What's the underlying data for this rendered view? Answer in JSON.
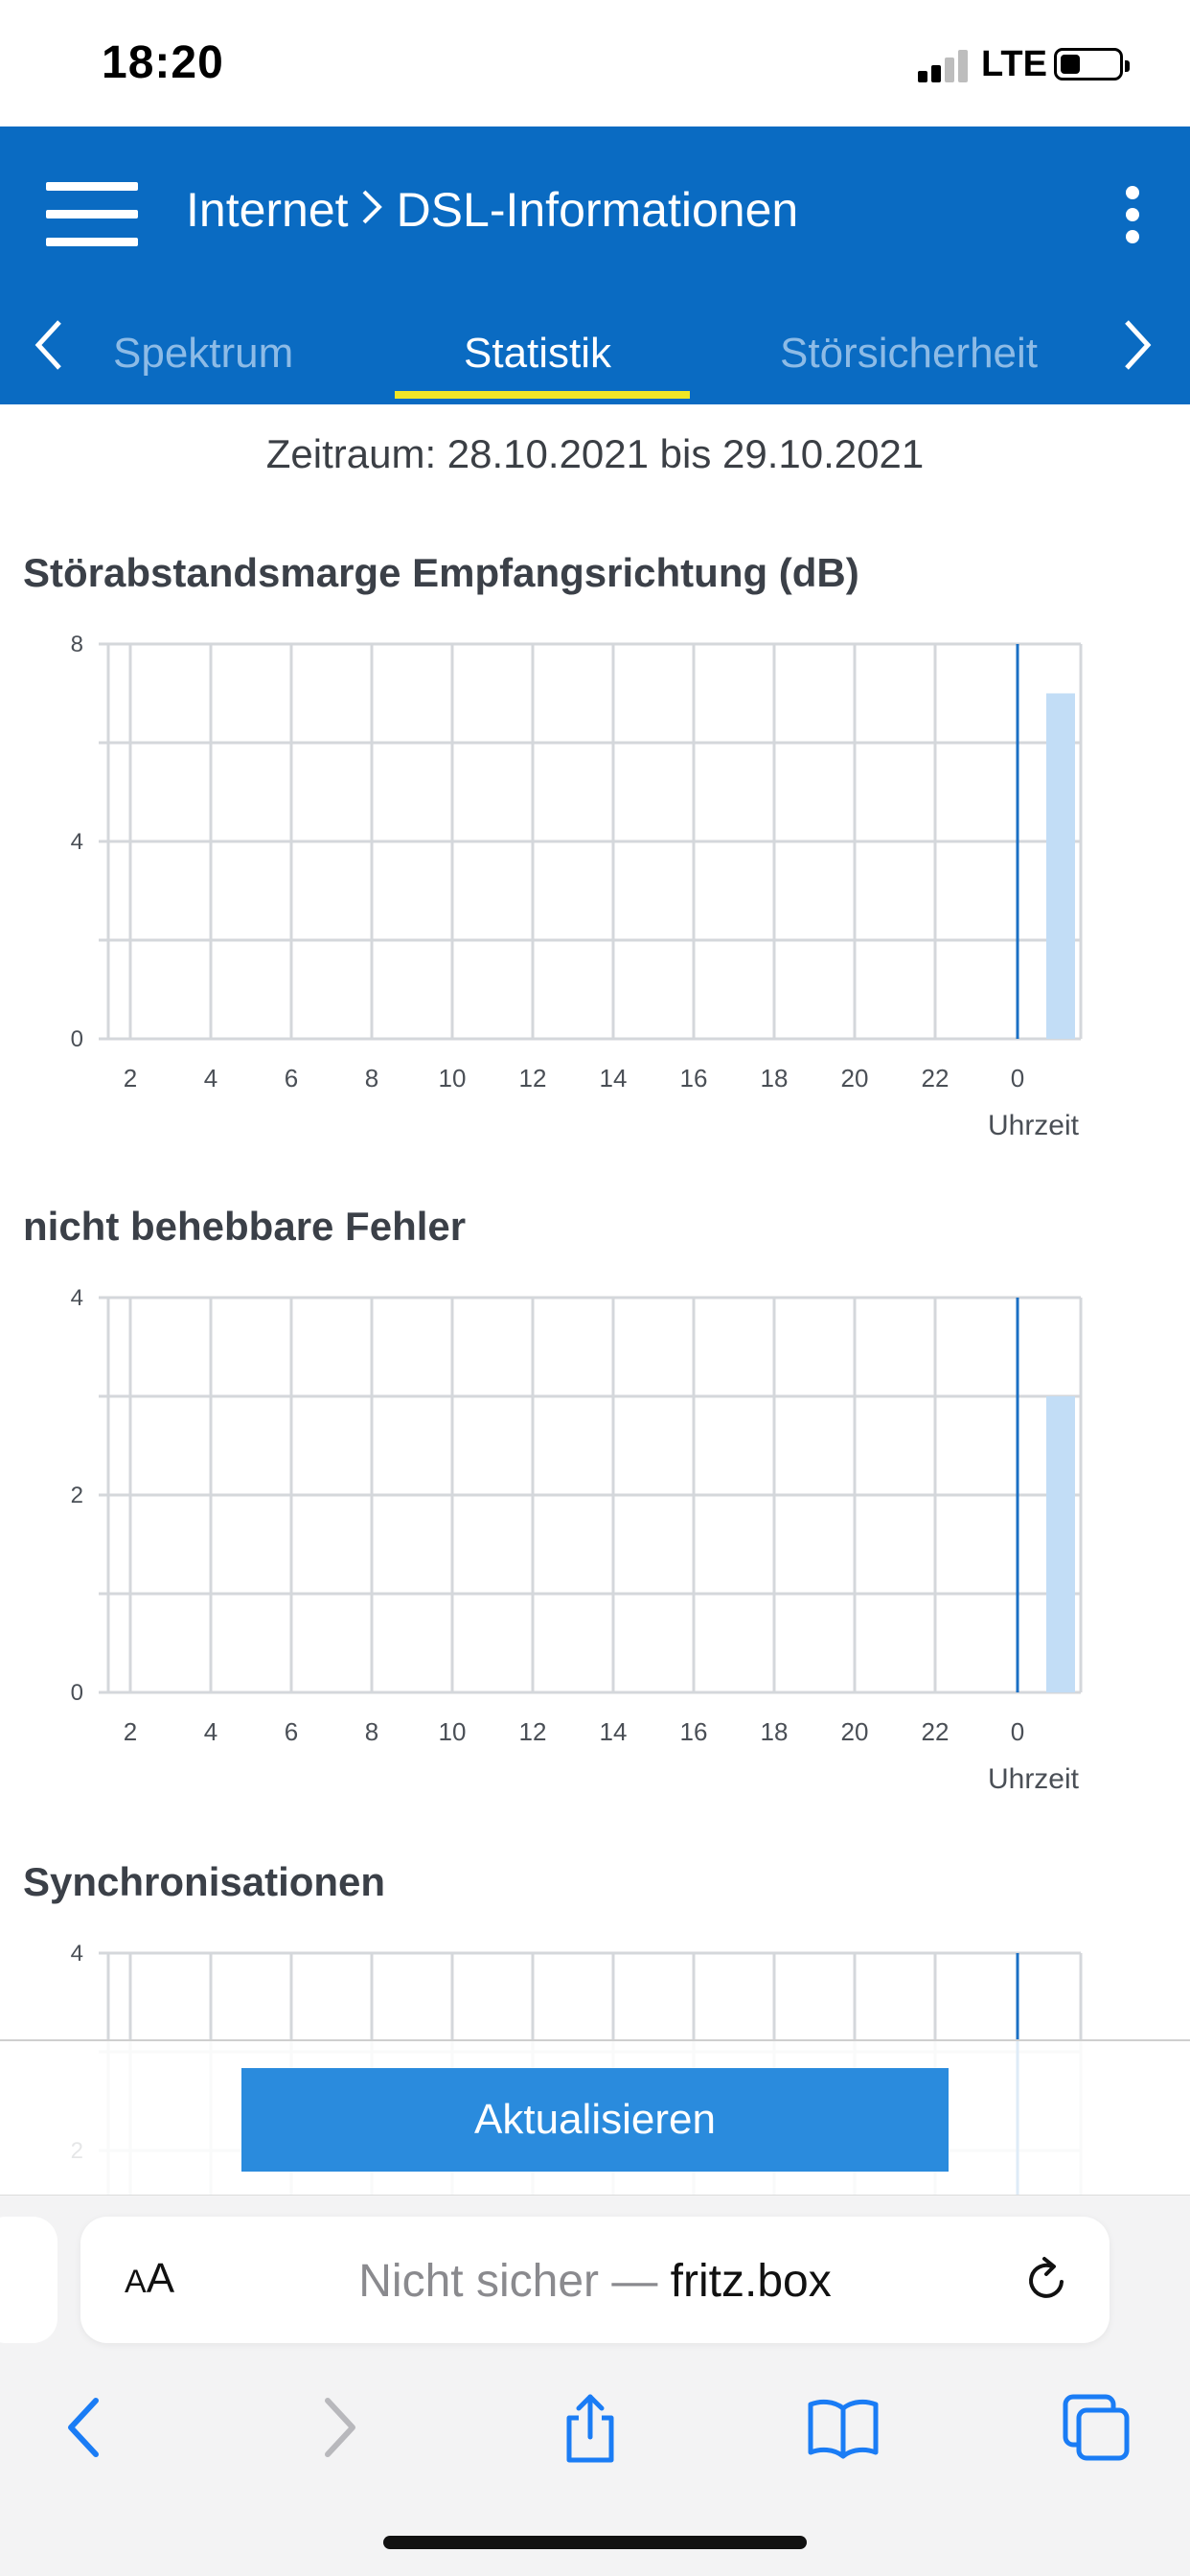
{
  "status_bar": {
    "time": "18:20",
    "network": "LTE"
  },
  "header": {
    "breadcrumb_section": "Internet",
    "breadcrumb_separator": ">",
    "breadcrumb_page": "DSL-Informationen",
    "tabs": [
      {
        "label": "Spektrum",
        "active": false
      },
      {
        "label": "Statistik",
        "active": true
      },
      {
        "label": "Störsicherheit",
        "active": false
      }
    ]
  },
  "period": "Zeitraum: 28.10.2021 bis 29.10.2021",
  "chart_data": [
    {
      "type": "bar",
      "title": "Störabstandsmarge Empfangsrichtung (dB)",
      "xlabel": "Uhrzeit",
      "x_ticks": [
        "2",
        "4",
        "6",
        "8",
        "10",
        "12",
        "14",
        "16",
        "18",
        "20",
        "22",
        "0"
      ],
      "y_ticks": [
        "0",
        "4",
        "8"
      ],
      "ylim": [
        0,
        8
      ],
      "bars": [
        {
          "x": "after 0",
          "value": 7
        }
      ],
      "grid": true
    },
    {
      "type": "bar",
      "title": "nicht behebbare Fehler",
      "xlabel": "Uhrzeit",
      "x_ticks": [
        "2",
        "4",
        "6",
        "8",
        "10",
        "12",
        "14",
        "16",
        "18",
        "20",
        "22",
        "0"
      ],
      "y_ticks": [
        "0",
        "2",
        "4"
      ],
      "ylim": [
        0,
        4
      ],
      "bars": [
        {
          "x": "after 0",
          "value": 3
        }
      ],
      "grid": true
    },
    {
      "type": "bar",
      "title": "Synchronisationen",
      "xlabel": "",
      "x_ticks": [],
      "y_ticks": [
        "2",
        "4"
      ],
      "ylim": [
        0,
        4
      ],
      "bars": [],
      "grid": true
    }
  ],
  "refresh_button": "Aktualisieren",
  "safari": {
    "aa_label_big": "A",
    "aa_label_small": "A",
    "security": "Nicht sicher — ",
    "host": "fritz.box"
  },
  "colors": {
    "header_blue": "#0a6bc2",
    "tab_underline": "#f0e626",
    "bar_fill": "#c2ddf6",
    "marker_line": "#1a6fc4",
    "button_blue": "#2a8bdd",
    "ios_blue": "#1a7cf5"
  }
}
